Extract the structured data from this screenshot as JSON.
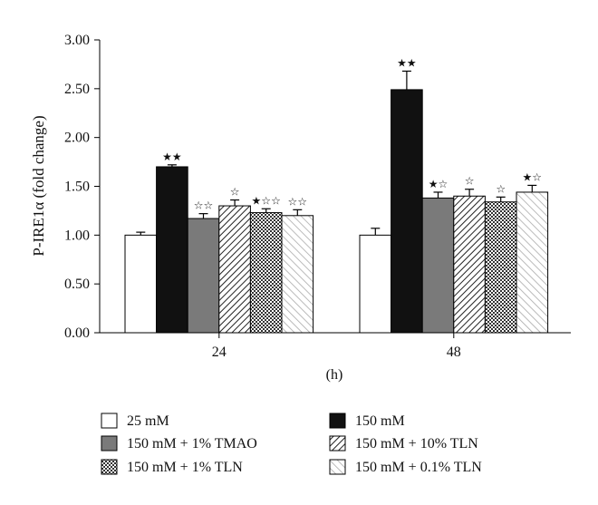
{
  "chart_data": {
    "type": "bar",
    "ylabel": "P-IRE1α (fold change)",
    "xlabel": "(h)",
    "ylim": [
      0,
      3
    ],
    "yticks": [
      "0.00",
      "0.50",
      "1.00",
      "1.50",
      "2.00",
      "2.50",
      "3.00"
    ],
    "categories": [
      "24",
      "48"
    ],
    "legend_position": "bottom",
    "series": [
      {
        "name": "25 mM",
        "pattern": "white",
        "values": [
          1.0,
          1.0
        ],
        "errors": [
          0.03,
          0.07
        ],
        "markers": [
          "",
          ""
        ]
      },
      {
        "name": "150 mM",
        "pattern": "black",
        "values": [
          1.7,
          2.49
        ],
        "errors": [
          0.02,
          0.19
        ],
        "markers": [
          "★★",
          "★★"
        ]
      },
      {
        "name": "150 mM + 1% TMAO",
        "pattern": "gray",
        "values": [
          1.17,
          1.38
        ],
        "errors": [
          0.05,
          0.06
        ],
        "markers": [
          "☆☆",
          "★☆"
        ]
      },
      {
        "name": "150 mM + 10% TLN",
        "pattern": "diag-dense",
        "values": [
          1.3,
          1.4
        ],
        "errors": [
          0.06,
          0.07
        ],
        "markers": [
          "☆",
          "☆"
        ]
      },
      {
        "name": "150 mM + 1% TLN",
        "pattern": "checker",
        "values": [
          1.23,
          1.34
        ],
        "errors": [
          0.04,
          0.05
        ],
        "markers": [
          "★☆☆",
          "☆"
        ]
      },
      {
        "name": "150 mM + 0.1% TLN",
        "pattern": "diag-light",
        "values": [
          1.2,
          1.44
        ],
        "errors": [
          0.06,
          0.07
        ],
        "markers": [
          "☆☆",
          "★☆"
        ]
      }
    ]
  }
}
